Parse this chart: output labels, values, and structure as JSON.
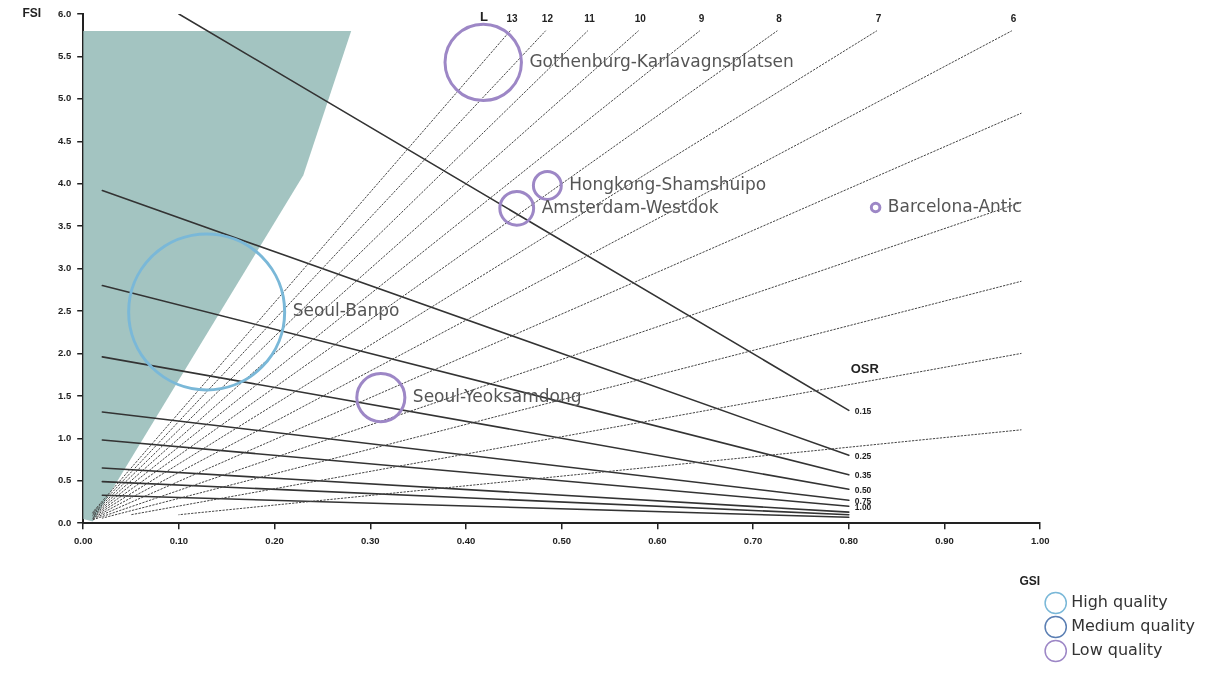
{
  "chart_data": {
    "type": "bubble",
    "xlabel": "GSI",
    "ylabel": "FSI",
    "xlim": [
      0,
      1
    ],
    "ylim": [
      0,
      6
    ],
    "xticks": [
      {
        "value": 0,
        "label": "0.00"
      },
      {
        "value": 0.1,
        "label": "0.10"
      },
      {
        "value": 0.2,
        "label": "0.20"
      },
      {
        "value": 0.3,
        "label": "0.30"
      },
      {
        "value": 0.4,
        "label": "0.40"
      },
      {
        "value": 0.5,
        "label": "0.50"
      },
      {
        "value": 0.6,
        "label": "0.60"
      },
      {
        "value": 0.7,
        "label": "0.70"
      },
      {
        "value": 0.8,
        "label": "0.80"
      },
      {
        "value": 0.9,
        "label": "0.90"
      },
      {
        "value": 1,
        "label": "1.00"
      }
    ],
    "yticks": [
      {
        "value": 0,
        "label": "0.0"
      },
      0.5,
      {
        "value": 1,
        "label": "1.0"
      },
      1.5,
      {
        "value": 2,
        "label": "2.0"
      },
      2.5,
      {
        "value": 3,
        "label": "3.0"
      },
      3.5,
      {
        "value": 4,
        "label": "4.0"
      },
      4.5,
      {
        "value": 5,
        "label": "5.0"
      },
      5.5,
      {
        "value": 6,
        "label": "6.0"
      }
    ],
    "legend": "bottom right",
    "series": [
      {
        "type": "area",
        "color": "#a3c4c1",
        "x": [
          0.0,
          0.28,
          0.23,
          0.01,
          0.0
        ],
        "values": [
          5.8,
          5.8,
          4.1,
          0.02,
          0.05
        ]
      },
      {
        "type": "line",
        "name": "13",
        "color": "#444444",
        "line_style": "dotted",
        "x": [
          0.01,
          0.446
        ],
        "values": [
          0.13,
          5.8
        ]
      },
      {
        "type": "line",
        "name": "12",
        "color": "#444444",
        "line_style": "dotted",
        "x": [
          0.01,
          0.483
        ],
        "values": [
          0.12,
          5.8
        ]
      },
      {
        "type": "line",
        "name": "11",
        "color": "#444444",
        "line_style": "dotted",
        "x": [
          0.01,
          0.527
        ],
        "values": [
          0.11,
          5.8
        ]
      },
      {
        "type": "line",
        "name": "10",
        "color": "#444444",
        "line_style": "dotted",
        "x": [
          0.01,
          0.58
        ],
        "values": [
          0.1,
          5.8
        ]
      },
      {
        "type": "line",
        "name": "9",
        "color": "#444444",
        "line_style": "dotted",
        "x": [
          0.01,
          0.644
        ],
        "values": [
          0.09,
          5.8
        ]
      },
      {
        "type": "line",
        "name": "8",
        "color": "#444444",
        "line_style": "dotted",
        "x": [
          0.01,
          0.725
        ],
        "values": [
          0.08,
          5.8
        ]
      },
      {
        "type": "line",
        "name": "7",
        "color": "#444444",
        "line_style": "dotted",
        "x": [
          0.01,
          0.829
        ],
        "values": [
          0.07,
          5.8
        ]
      },
      {
        "type": "line",
        "name": "6",
        "color": "#444444",
        "line_style": "dotted",
        "x": [
          0.01,
          0.97
        ],
        "values": [
          0.06,
          5.8
        ]
      },
      {
        "type": "line",
        "color": "#444444",
        "line_style": "dotted",
        "x": [
          0.01,
          0.98
        ],
        "values": [
          0.05,
          4.83
        ]
      },
      {
        "type": "line",
        "color": "#444444",
        "line_style": "dotted",
        "x": [
          0.01,
          0.98
        ],
        "values": [
          0.04,
          3.78
        ]
      },
      {
        "type": "line",
        "color": "#444444",
        "line_style": "dotted",
        "x": [
          0.02,
          0.98
        ],
        "values": [
          0.06,
          2.85
        ]
      },
      {
        "type": "line",
        "color": "#444444",
        "line_style": "dotted",
        "x": [
          0.05,
          0.98
        ],
        "values": [
          0.1,
          2.0
        ]
      },
      {
        "type": "line",
        "color": "#444444",
        "line_style": "dotted",
        "x": [
          0.1,
          0.98
        ],
        "values": [
          0.1,
          1.1
        ]
      },
      {
        "type": "line",
        "name": "0.15",
        "color": "#333333",
        "x": [
          0.1,
          0.8
        ],
        "values": [
          6.0,
          1.33
        ]
      },
      {
        "type": "line",
        "name": "0.25",
        "color": "#333333",
        "x": [
          0.02,
          0.8
        ],
        "values": [
          3.92,
          0.8
        ]
      },
      {
        "type": "line",
        "name": "0.35",
        "color": "#333333",
        "x": [
          0.02,
          0.8
        ],
        "values": [
          2.8,
          0.57
        ]
      },
      {
        "type": "line",
        "name": "0.50",
        "color": "#333333",
        "x": [
          0.02,
          0.8
        ],
        "values": [
          1.96,
          0.4
        ]
      },
      {
        "type": "line",
        "name": "0.75",
        "color": "#333333",
        "x": [
          0.02,
          0.8
        ],
        "values": [
          1.31,
          0.27
        ]
      },
      {
        "type": "line",
        "name": "1.00",
        "color": "#333333",
        "x": [
          0.02,
          0.8
        ],
        "values": [
          0.98,
          0.2
        ]
      },
      {
        "type": "line",
        "color": "#333333",
        "x": [
          0.02,
          0.8
        ],
        "values": [
          0.65,
          0.13
        ]
      },
      {
        "type": "line",
        "color": "#333333",
        "x": [
          0.02,
          0.8
        ],
        "values": [
          0.49,
          0.1
        ]
      },
      {
        "type": "line",
        "color": "#333333",
        "x": [
          0.02,
          0.8
        ],
        "values": [
          0.33,
          0.07
        ]
      },
      {
        "name": "High quality",
        "color": "#7ab8d8",
        "x": [
          0.129
        ],
        "values": [
          2.49
        ],
        "sizes": [
          1
        ]
      },
      {
        "name": "Medium quality",
        "color": "#5b7fb3"
      },
      {
        "name": "Low quality",
        "color": "#9d87c6",
        "x": [
          0.311,
          0.418,
          0.485,
          0.453,
          0.828
        ],
        "values": [
          1.48,
          5.43,
          3.98,
          3.71,
          3.72
        ],
        "sizes": [
          0.095,
          0.24,
          0.032,
          0.047,
          0.003
        ]
      }
    ],
    "annotations": [
      "Seoul-Banpo",
      "Seoul-Yeoksamdong",
      "Gothenburg-Karlavagnsplatsen",
      "Hongkong-Shamshuipo",
      "Amsterdam-Westdok",
      "Barcelona-Antic",
      "L",
      "OSR"
    ]
  }
}
